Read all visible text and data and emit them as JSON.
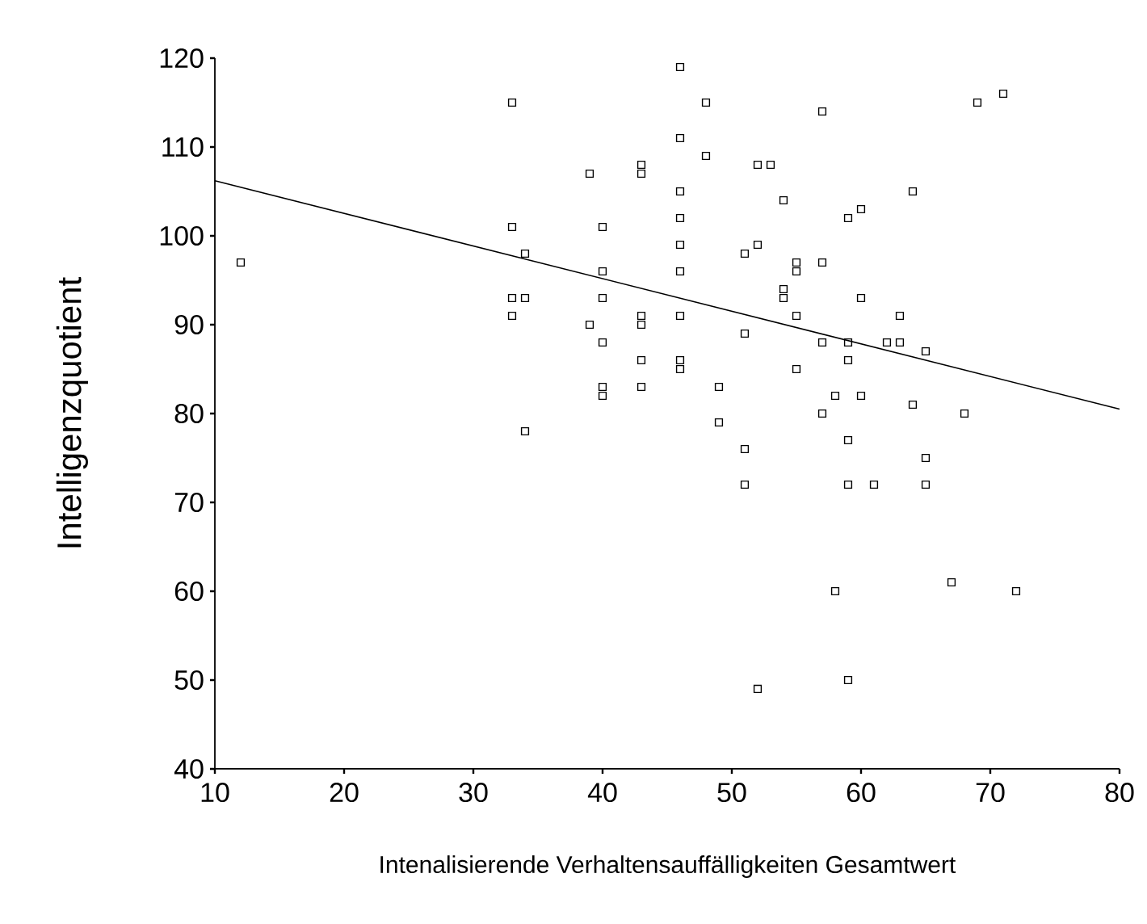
{
  "chart_data": {
    "type": "scatter",
    "xlabel": "Intenalisierende Verhaltensauffälligkeiten Gesamtwert",
    "ylabel": "Intelligenzquotient",
    "xlim": [
      10,
      80
    ],
    "ylim": [
      40,
      120
    ],
    "xticks": [
      10,
      20,
      30,
      40,
      50,
      60,
      70,
      80
    ],
    "yticks": [
      40,
      50,
      60,
      70,
      80,
      90,
      100,
      110,
      120
    ],
    "grid": false,
    "marker": "square",
    "series": [
      {
        "color": "#000000",
        "x": [
          12,
          33,
          33,
          33,
          33,
          34,
          34,
          34,
          39,
          39,
          40,
          40,
          40,
          40,
          40,
          40,
          43,
          43,
          43,
          43,
          43,
          43,
          46,
          46,
          46,
          46,
          46,
          46,
          46,
          46,
          46,
          48,
          48,
          49,
          49,
          51,
          51,
          51,
          51,
          52,
          52,
          52,
          53,
          54,
          54,
          54,
          55,
          55,
          55,
          55,
          57,
          57,
          57,
          57,
          58,
          58,
          59,
          59,
          59,
          59,
          59,
          59,
          60,
          60,
          60,
          61,
          62,
          63,
          63,
          64,
          64,
          65,
          65,
          65,
          67,
          68,
          69,
          71,
          72
        ],
        "values": [
          97,
          115,
          101,
          93,
          91,
          98,
          93,
          78,
          107,
          90,
          101,
          96,
          93,
          88,
          83,
          82,
          108,
          107,
          91,
          90,
          86,
          83,
          119,
          111,
          105,
          102,
          99,
          96,
          91,
          86,
          85,
          115,
          109,
          83,
          79,
          98,
          89,
          76,
          72,
          108,
          99,
          49,
          108,
          104,
          94,
          93,
          97,
          96,
          91,
          85,
          114,
          97,
          88,
          80,
          82,
          60,
          102,
          88,
          86,
          77,
          72,
          50,
          103,
          93,
          82,
          72,
          88,
          91,
          88,
          105,
          81,
          87,
          75,
          72,
          61,
          80,
          115,
          116,
          60
        ]
      },
      {
        "type": "line",
        "color": "#000000",
        "marker": "none",
        "line_style": "solid",
        "x": [
          10,
          80
        ],
        "values": [
          106.2,
          80.5
        ]
      }
    ]
  }
}
